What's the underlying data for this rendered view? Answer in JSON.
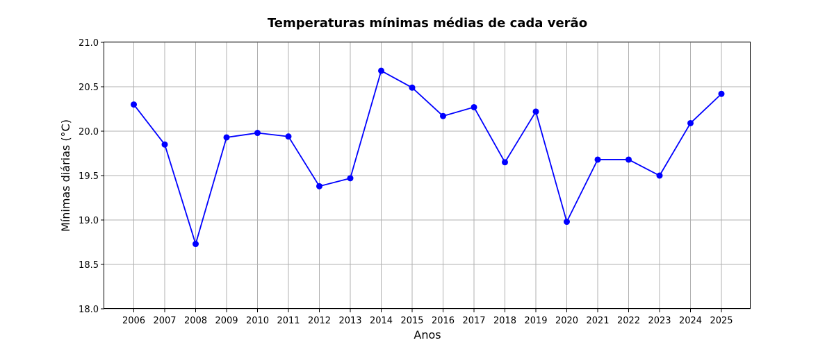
{
  "chart_data": {
    "type": "line",
    "title": "Temperaturas mínimas médias de cada verão",
    "xlabel": "Anos",
    "ylabel": "Mínimas diárias (°C)",
    "x": [
      "2006",
      "2007",
      "2008",
      "2009",
      "2010",
      "2011",
      "2012",
      "2013",
      "2014",
      "2015",
      "2016",
      "2017",
      "2018",
      "2019",
      "2020",
      "2021",
      "2022",
      "2023",
      "2024",
      "2025"
    ],
    "series": [
      {
        "values": [
          20.3,
          19.85,
          18.73,
          19.93,
          19.98,
          19.94,
          19.38,
          19.47,
          20.68,
          20.49,
          20.17,
          20.27,
          19.65,
          20.22,
          18.98,
          19.68,
          19.68,
          19.5,
          20.09,
          20.42
        ],
        "color": "#0000ff",
        "marker": "circle"
      }
    ],
    "ylim": [
      18.0,
      21.0
    ],
    "yticks": [
      "18.0",
      "18.5",
      "19.0",
      "19.5",
      "20.0",
      "20.5",
      "21.0"
    ],
    "grid": true
  }
}
